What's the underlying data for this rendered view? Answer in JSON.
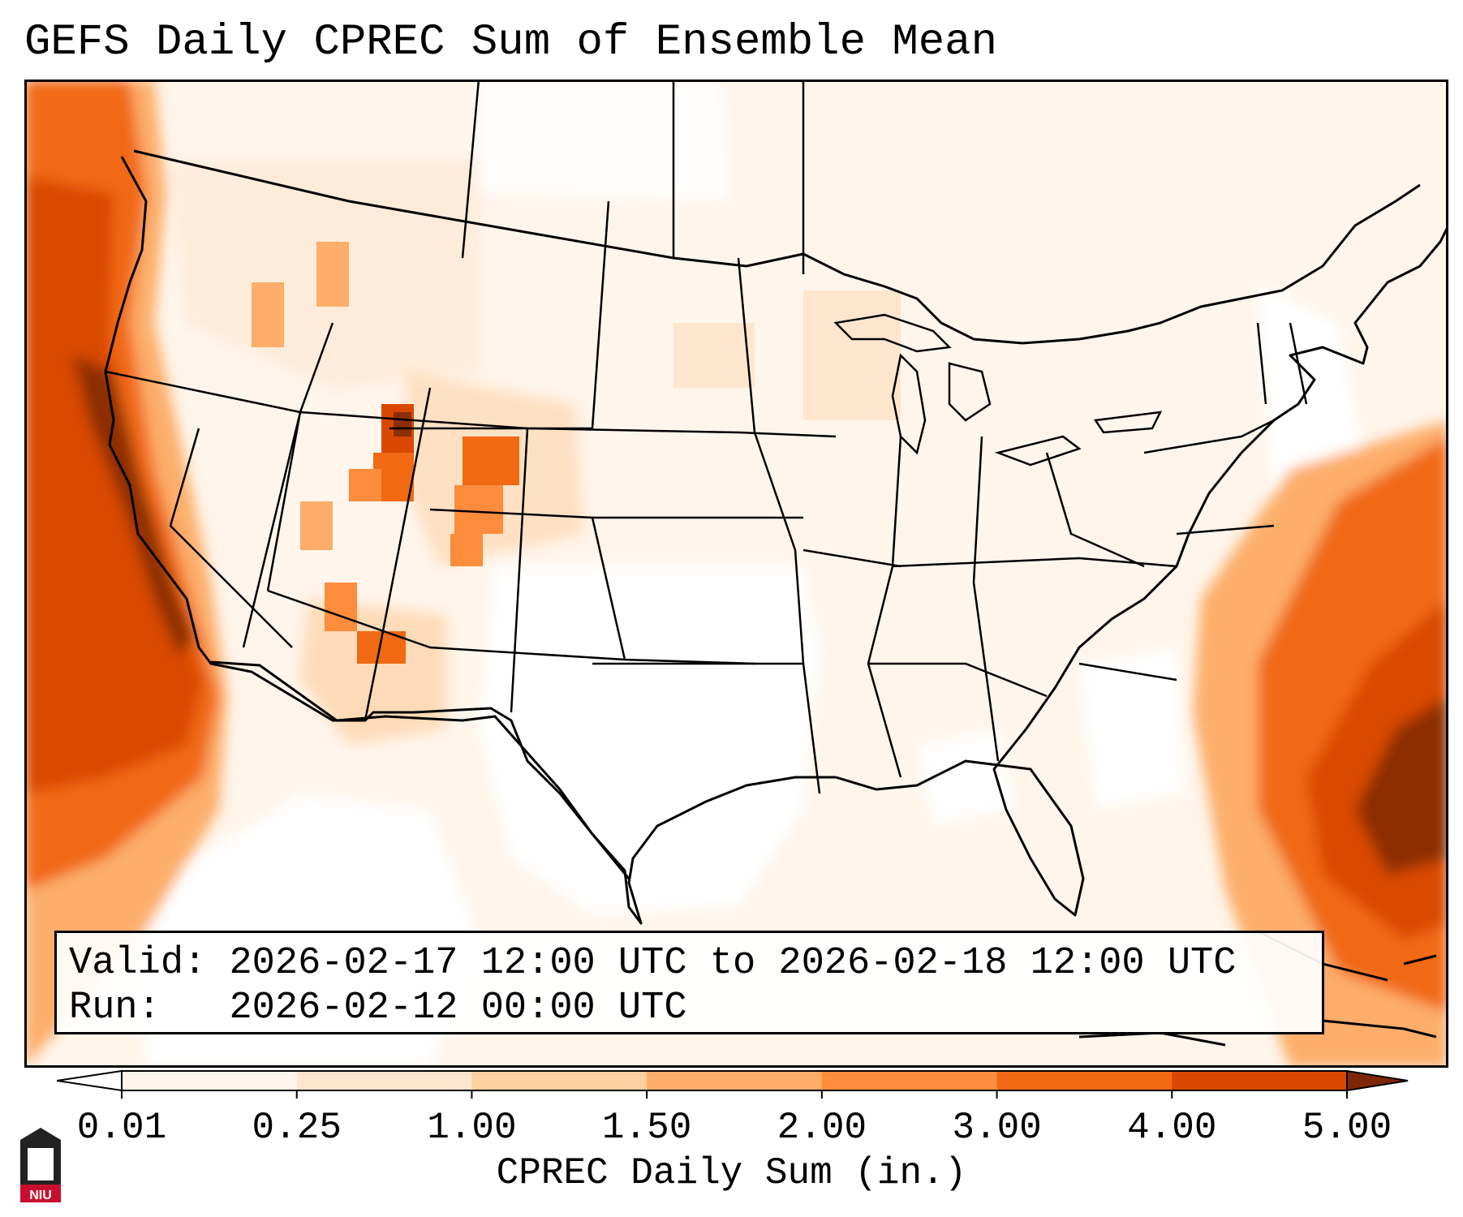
{
  "title": "GEFS Daily CPREC Sum of Ensemble Mean",
  "valid_label": "Valid:",
  "valid_text": "2026-02-17 12:00 UTC to 2026-02-18 12:00 UTC",
  "run_label": "Run:",
  "run_text": "2026-02-12 00:00 UTC",
  "colorbar": {
    "label": "CPREC Daily Sum (in.)",
    "ticks": [
      "0.01",
      "0.25",
      "1.00",
      "1.50",
      "2.00",
      "3.00",
      "4.00",
      "5.00"
    ],
    "colors": [
      "#fff5eb",
      "#fee6ce",
      "#fdd0a2",
      "#fdae6b",
      "#fd8d3c",
      "#f16913",
      "#d94801",
      "#8c2d04"
    ],
    "under_color": "#ffffff",
    "over_color": "#7f2704"
  },
  "logo_text": "NIU"
}
